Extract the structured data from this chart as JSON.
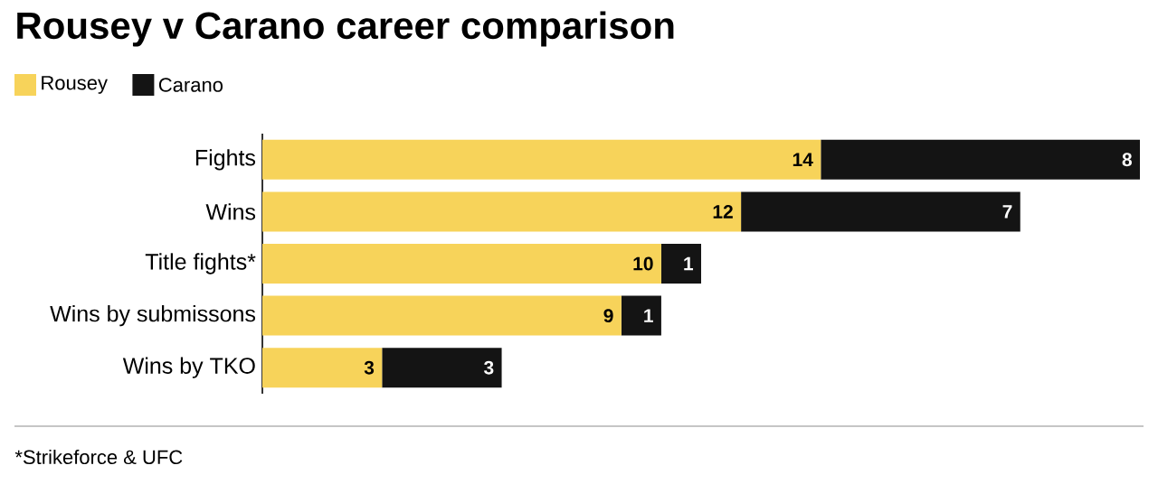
{
  "chart_data": {
    "type": "bar",
    "orientation": "horizontal",
    "stacked": true,
    "title": "Rousey v Carano career comparison",
    "categories": [
      "Fights",
      "Wins",
      "Title fights*",
      "Wins by submissons",
      "Wins by TKO"
    ],
    "series": [
      {
        "name": "Rousey",
        "color": "#f7d35a",
        "values": [
          14,
          12,
          10,
          9,
          3
        ]
      },
      {
        "name": "Carano",
        "color": "#141414",
        "values": [
          8,
          7,
          1,
          1,
          3
        ]
      }
    ],
    "data_labels": true,
    "legend": "top left",
    "annotations": [
      "*Strikeforce & UFC"
    ]
  }
}
